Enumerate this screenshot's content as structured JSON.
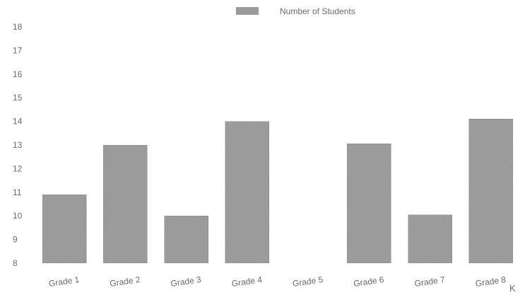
{
  "chart_data": {
    "type": "bar",
    "title": "",
    "xlabel": "",
    "ylabel": "",
    "ylim": [
      8,
      18
    ],
    "yticks": [
      8,
      9,
      10,
      11,
      12,
      13,
      14,
      15,
      16,
      17,
      18
    ],
    "grid": false,
    "legend_position": "top-center",
    "categories": [
      "Grade 1",
      "Grade 2",
      "Grade 3",
      "Grade 4",
      "Grade 5",
      "Grade 6",
      "Grade 7",
      "Grade 8"
    ],
    "series": [
      {
        "name": "Number of Students",
        "values": [
          10.9,
          13,
          10,
          14,
          null,
          13.05,
          10.05,
          14.1
        ],
        "color": "#a6a6a6"
      }
    ],
    "annotations": [
      "K"
    ]
  }
}
